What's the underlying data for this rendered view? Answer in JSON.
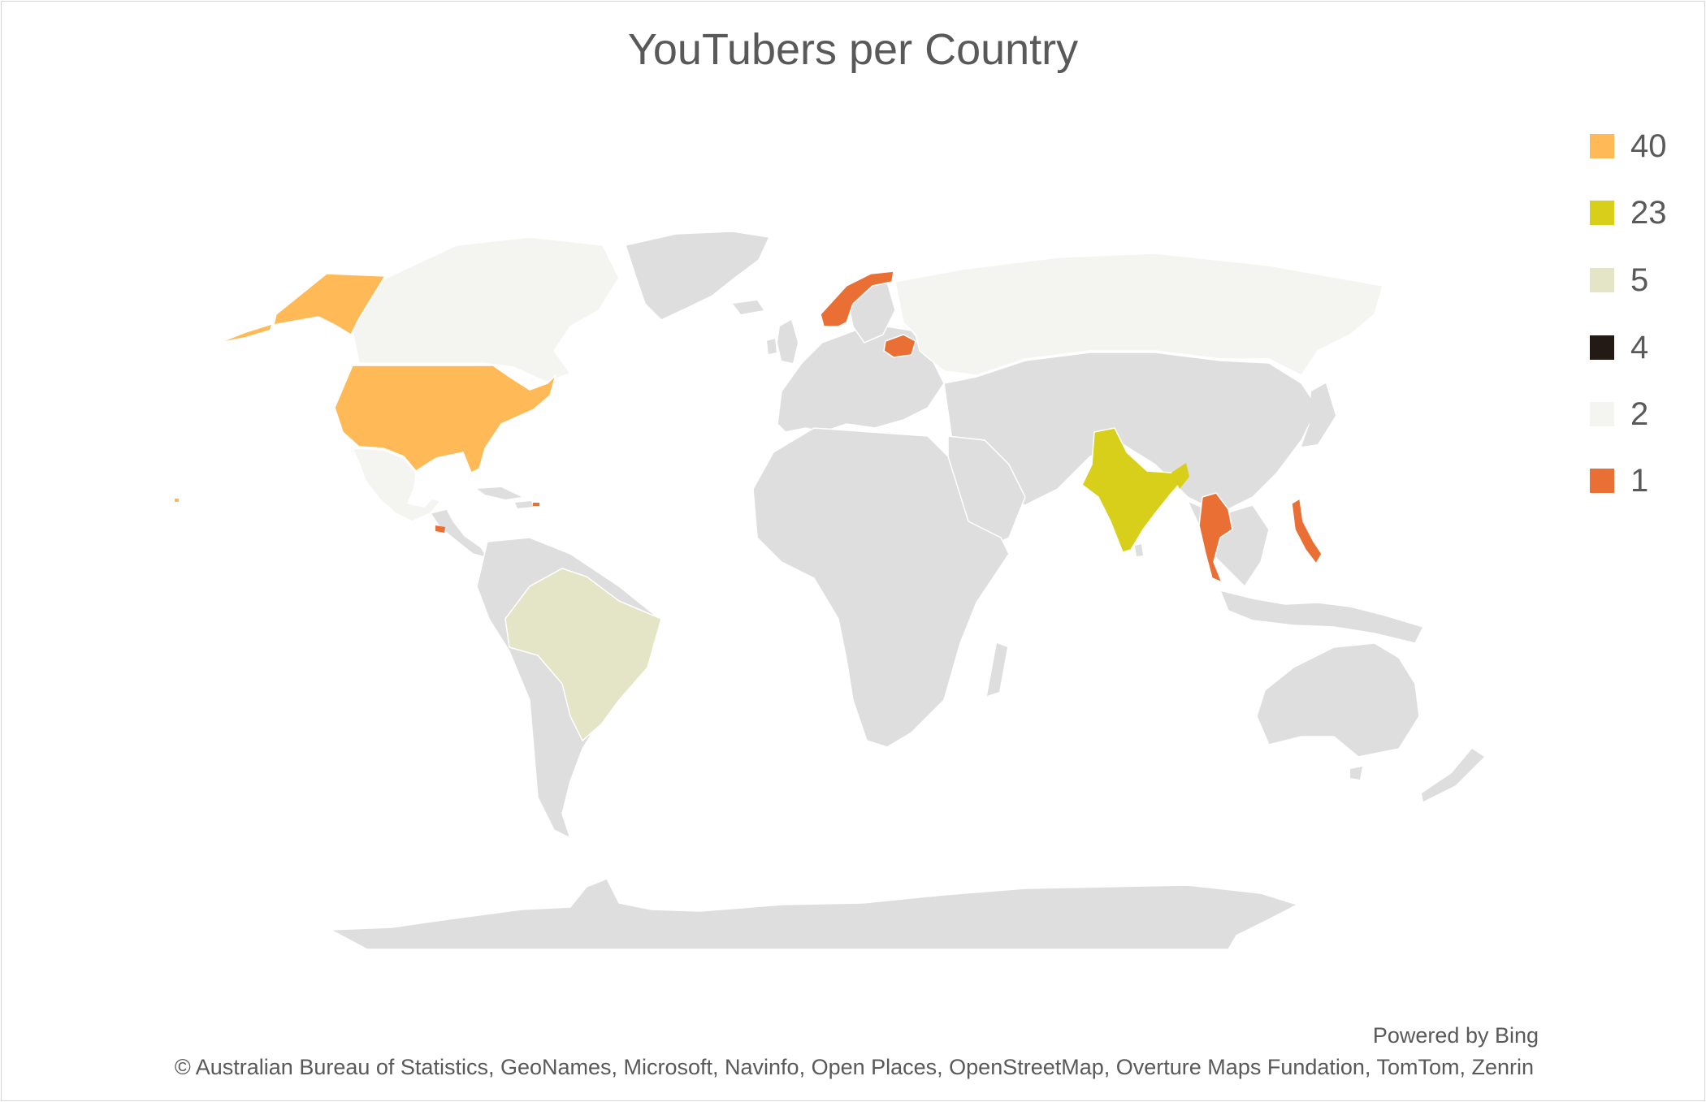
{
  "title": "YouTubers per Country",
  "legend": [
    {
      "label": "40",
      "color": "#FFBA57"
    },
    {
      "label": "23",
      "color": "#D8CF1A"
    },
    {
      "label": "5",
      "color": "#E3E5C6"
    },
    {
      "label": "4",
      "color": "#231A15"
    },
    {
      "label": "2",
      "color": "#F4F5F0"
    },
    {
      "label": "1",
      "color": "#EA6F35"
    }
  ],
  "colors": {
    "other_land": "#DEDEDE"
  },
  "footer": {
    "powered_by": "Powered by Bing",
    "credits": "© Australian Bureau of Statistics, GeoNames, Microsoft, Navinfo, Open Places, OpenStreetMap, Overture Maps Fundation, TomTom, Zenrin"
  },
  "chart_data": {
    "type": "map",
    "title": "YouTubers per Country",
    "regions": [
      {
        "name": "United States",
        "value": 40
      },
      {
        "name": "India",
        "value": 23
      },
      {
        "name": "Bangladesh",
        "value": 23
      },
      {
        "name": "Brazil",
        "value": 5
      },
      {
        "name": "Canada",
        "value": 2
      },
      {
        "name": "Russia",
        "value": 2
      },
      {
        "name": "Mexico",
        "value": 2
      },
      {
        "name": "Norway",
        "value": 1
      },
      {
        "name": "Belarus",
        "value": 1
      },
      {
        "name": "Thailand",
        "value": 1
      },
      {
        "name": "Philippines",
        "value": 1
      },
      {
        "name": "El Salvador",
        "value": 1
      },
      {
        "name": "Puerto Rico",
        "value": 1
      }
    ],
    "legend_placement": "right"
  }
}
